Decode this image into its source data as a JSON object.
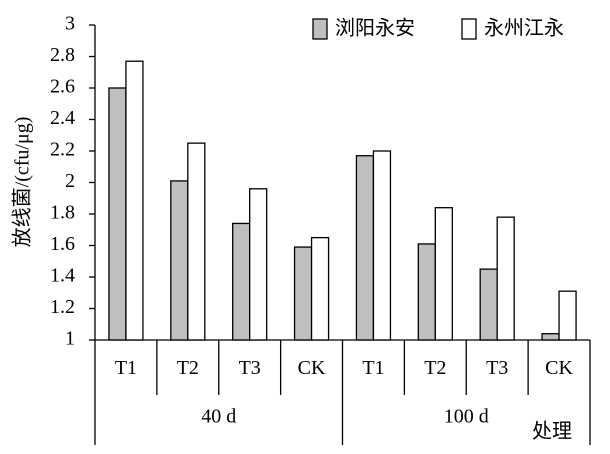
{
  "chart_data": {
    "type": "bar",
    "ylabel": "放线菌/(cfu/μg)",
    "xlabel": "处理",
    "categories": [
      "T1",
      "T2",
      "T3",
      "CK",
      "T1",
      "T2",
      "T3",
      "CK"
    ],
    "group_labels": [
      "40 d",
      "100 d"
    ],
    "series": [
      {
        "name": "浏阳永安",
        "color": "#bfbfbf",
        "values": [
          2.6,
          2.01,
          1.74,
          1.59,
          2.17,
          1.61,
          1.45,
          1.04
        ]
      },
      {
        "name": "永州江永",
        "color": "#ffffff",
        "values": [
          2.77,
          2.25,
          1.96,
          1.65,
          2.2,
          1.84,
          1.78,
          1.31
        ]
      }
    ],
    "ylim": [
      1,
      3
    ],
    "yticks": [
      1,
      1.2,
      1.4,
      1.6,
      1.8,
      2,
      2.2,
      2.4,
      2.6,
      2.8,
      3
    ],
    "legend": "top-right"
  }
}
